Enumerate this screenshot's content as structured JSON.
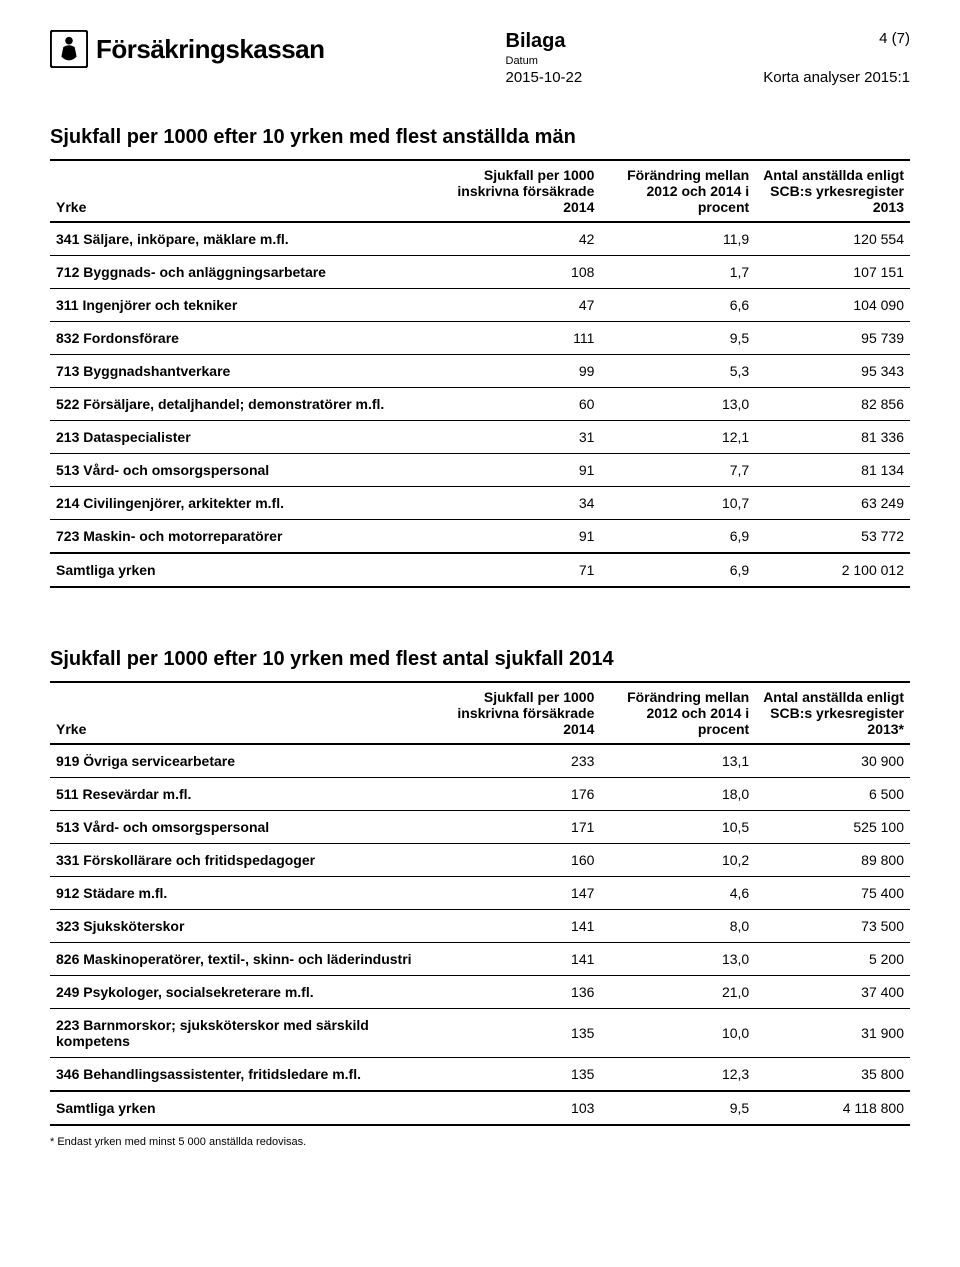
{
  "header": {
    "org_name": "Försäkringskassan",
    "bilaga": "Bilaga",
    "datum_label": "Datum",
    "datum_value": "2015-10-22",
    "page_num": "4 (7)",
    "subtitle": "Korta analyser 2015:1"
  },
  "table1": {
    "title": "Sjukfall per 1000 efter 10 yrken med flest anställda män",
    "headers": {
      "yrke": "Yrke",
      "sjukfall": "Sjukfall per 1000 inskrivna försäkrade 2014",
      "forandring": "Förändring mellan 2012 och 2014 i procent",
      "antal": "Antal anställda enligt SCB:s yrkesregister 2013"
    },
    "rows": [
      {
        "yrke": "341 Säljare, inköpare, mäklare m.fl.",
        "sjukfall": "42",
        "forandring": "11,9",
        "antal": "120 554"
      },
      {
        "yrke": "712 Byggnads- och anläggningsarbetare",
        "sjukfall": "108",
        "forandring": "1,7",
        "antal": "107 151"
      },
      {
        "yrke": "311 Ingenjörer och tekniker",
        "sjukfall": "47",
        "forandring": "6,6",
        "antal": "104 090"
      },
      {
        "yrke": "832 Fordonsförare",
        "sjukfall": "111",
        "forandring": "9,5",
        "antal": "95 739"
      },
      {
        "yrke": "713 Byggnadshantverkare",
        "sjukfall": "99",
        "forandring": "5,3",
        "antal": "95 343"
      },
      {
        "yrke": "522 Försäljare, detaljhandel; demonstratörer m.fl.",
        "sjukfall": "60",
        "forandring": "13,0",
        "antal": "82 856"
      },
      {
        "yrke": "213 Dataspecialister",
        "sjukfall": "31",
        "forandring": "12,1",
        "antal": "81 336"
      },
      {
        "yrke": "513 Vård- och omsorgspersonal",
        "sjukfall": "91",
        "forandring": "7,7",
        "antal": "81 134"
      },
      {
        "yrke": "214 Civilingenjörer, arkitekter m.fl.",
        "sjukfall": "34",
        "forandring": "10,7",
        "antal": "63 249"
      },
      {
        "yrke": "723 Maskin- och motorreparatörer",
        "sjukfall": "91",
        "forandring": "6,9",
        "antal": "53 772"
      }
    ],
    "total": {
      "yrke": "Samtliga yrken",
      "sjukfall": "71",
      "forandring": "6,9",
      "antal": "2 100 012"
    }
  },
  "table2": {
    "title": "Sjukfall per 1000 efter 10 yrken med flest antal sjukfall 2014",
    "headers": {
      "yrke": "Yrke",
      "sjukfall": "Sjukfall per 1000 inskrivna försäkrade 2014",
      "forandring": "Förändring mellan 2012 och 2014 i procent",
      "antal": "Antal anställda enligt SCB:s yrkesregister 2013*"
    },
    "rows": [
      {
        "yrke": "919 Övriga servicearbetare",
        "sjukfall": "233",
        "forandring": "13,1",
        "antal": "30 900"
      },
      {
        "yrke": "511 Resevärdar m.fl.",
        "sjukfall": "176",
        "forandring": "18,0",
        "antal": "6 500"
      },
      {
        "yrke": "513 Vård- och omsorgspersonal",
        "sjukfall": "171",
        "forandring": "10,5",
        "antal": "525 100"
      },
      {
        "yrke": "331 Förskollärare och fritidspedagoger",
        "sjukfall": "160",
        "forandring": "10,2",
        "antal": "89 800"
      },
      {
        "yrke": "912 Städare m.fl.",
        "sjukfall": "147",
        "forandring": "4,6",
        "antal": "75 400"
      },
      {
        "yrke": "323 Sjuksköterskor",
        "sjukfall": "141",
        "forandring": "8,0",
        "antal": "73 500"
      },
      {
        "yrke": "826 Maskinoperatörer, textil-, skinn- och läderindustri",
        "sjukfall": "141",
        "forandring": "13,0",
        "antal": "5 200"
      },
      {
        "yrke": "249 Psykologer, socialsekreterare m.fl.",
        "sjukfall": "136",
        "forandring": "21,0",
        "antal": "37 400"
      },
      {
        "yrke": "223 Barnmorskor; sjuksköterskor med särskild kompetens",
        "sjukfall": "135",
        "forandring": "10,0",
        "antal": "31 900"
      },
      {
        "yrke": "346 Behandlingsassistenter, fritidsledare m.fl.",
        "sjukfall": "135",
        "forandring": "12,3",
        "antal": "35 800"
      }
    ],
    "total": {
      "yrke": "Samtliga yrken",
      "sjukfall": "103",
      "forandring": "9,5",
      "antal": "4 118 800"
    },
    "footnote": "* Endast yrken med minst 5 000 anställda redovisas."
  },
  "colors": {
    "text": "#000000",
    "background": "#ffffff",
    "rule": "#000000"
  }
}
